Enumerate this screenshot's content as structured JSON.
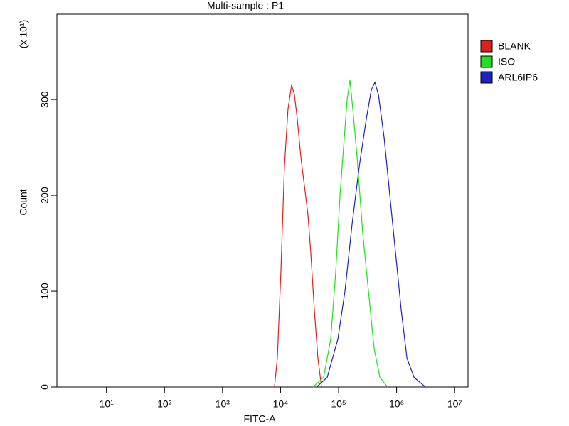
{
  "chart_data": {
    "type": "line",
    "title": "Multi-sample : P1",
    "x_label": "FITC-A",
    "y_label": "Count",
    "y_multiplier": "(x 10¹)",
    "x_scale": "log",
    "xlim": [
      1.4,
      17000000
    ],
    "xticks": [
      {
        "value": 10,
        "label": "10¹"
      },
      {
        "value": 100,
        "label": "10²"
      },
      {
        "value": 1000,
        "label": "10³"
      },
      {
        "value": 10000,
        "label": "10⁴"
      },
      {
        "value": 100000,
        "label": "10⁵"
      },
      {
        "value": 1000000,
        "label": "10⁶"
      },
      {
        "value": 10000000,
        "label": "10⁷"
      }
    ],
    "ylim": [
      0,
      389
    ],
    "yticks": [
      0,
      100,
      200,
      300
    ],
    "legend": "right",
    "series": [
      {
        "name": "BLANK",
        "color": "#e02020",
        "x": [
          7870,
          8810,
          10140,
          11670,
          13450,
          15490,
          17340,
          19410,
          22370,
          25760,
          29650,
          33200,
          38280,
          44040,
          50800
        ],
        "values": [
          0,
          30,
          120,
          230,
          290,
          315,
          305,
          280,
          240,
          210,
          180,
          140,
          80,
          30,
          0
        ]
      },
      {
        "name": "ISO",
        "color": "#20e020",
        "x": [
          36100,
          55200,
          73300,
          89300,
          105900,
          125400,
          140400,
          157100,
          175800,
          208300,
          261200,
          327300,
          410300,
          515000,
          703000
        ],
        "values": [
          0,
          10,
          50,
          120,
          200,
          260,
          300,
          320,
          290,
          240,
          160,
          100,
          40,
          10,
          0
        ]
      },
      {
        "name": "ARL6IP6",
        "color": "#2020c0",
        "x": [
          41700,
          63700,
          97300,
          128900,
          171000,
          227000,
          301000,
          366700,
          422300,
          486400,
          610000,
          764000,
          959000,
          1202000,
          1507000,
          2000000,
          3140000
        ],
        "values": [
          0,
          10,
          50,
          100,
          170,
          230,
          280,
          310,
          318,
          305,
          260,
          200,
          140,
          80,
          30,
          10,
          0
        ]
      }
    ]
  }
}
